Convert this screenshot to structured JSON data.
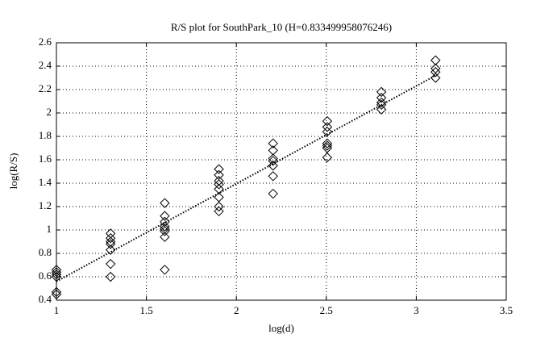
{
  "chart_data": {
    "type": "scatter",
    "title": "R/S plot for SouthPark_10 (H=0.833499958076246)",
    "x_label": "log(d)",
    "y_label": "log(R/S)",
    "x": [
      1,
      1,
      1,
      1,
      1,
      1,
      1.301,
      1.301,
      1.301,
      1.301,
      1.301,
      1.301,
      1.301,
      1.602,
      1.602,
      1.602,
      1.602,
      1.602,
      1.602,
      1.602,
      1.602,
      1.903,
      1.903,
      1.903,
      1.903,
      1.903,
      1.903,
      1.903,
      1.903,
      2.204,
      2.204,
      2.204,
      2.204,
      2.204,
      2.204,
      2.204,
      2.505,
      2.505,
      2.505,
      2.505,
      2.505,
      2.505,
      2.505,
      2.806,
      2.806,
      2.806,
      2.806,
      2.806,
      3.107,
      3.107,
      3.107,
      3.107
    ],
    "values": [
      0.66,
      0.64,
      0.62,
      0.6,
      0.47,
      0.45,
      0.97,
      0.93,
      0.9,
      0.88,
      0.83,
      0.71,
      0.6,
      1.23,
      1.12,
      1.07,
      1.03,
      1.01,
      0.99,
      0.94,
      0.66,
      1.52,
      1.47,
      1.42,
      1.39,
      1.35,
      1.28,
      1.2,
      1.16,
      1.74,
      1.68,
      1.61,
      1.59,
      1.55,
      1.46,
      1.31,
      1.93,
      1.88,
      1.84,
      1.74,
      1.72,
      1.7,
      1.62,
      2.18,
      2.13,
      2.09,
      2.07,
      2.03,
      2.45,
      2.38,
      2.35,
      2.3
    ],
    "color": "#000000",
    "fit": {
      "x": [
        1,
        3.107
      ],
      "y": [
        0.56,
        2.32
      ]
    },
    "xlim": [
      1,
      3.5
    ],
    "ylim": [
      0.4,
      2.6
    ],
    "xticks": [
      1,
      1.5,
      2,
      2.5,
      3,
      3.5
    ],
    "yticks": [
      0.4,
      0.6,
      0.8,
      1,
      1.2,
      1.4,
      1.6,
      1.8,
      2,
      2.2,
      2.4,
      2.6
    ],
    "grid": true
  }
}
